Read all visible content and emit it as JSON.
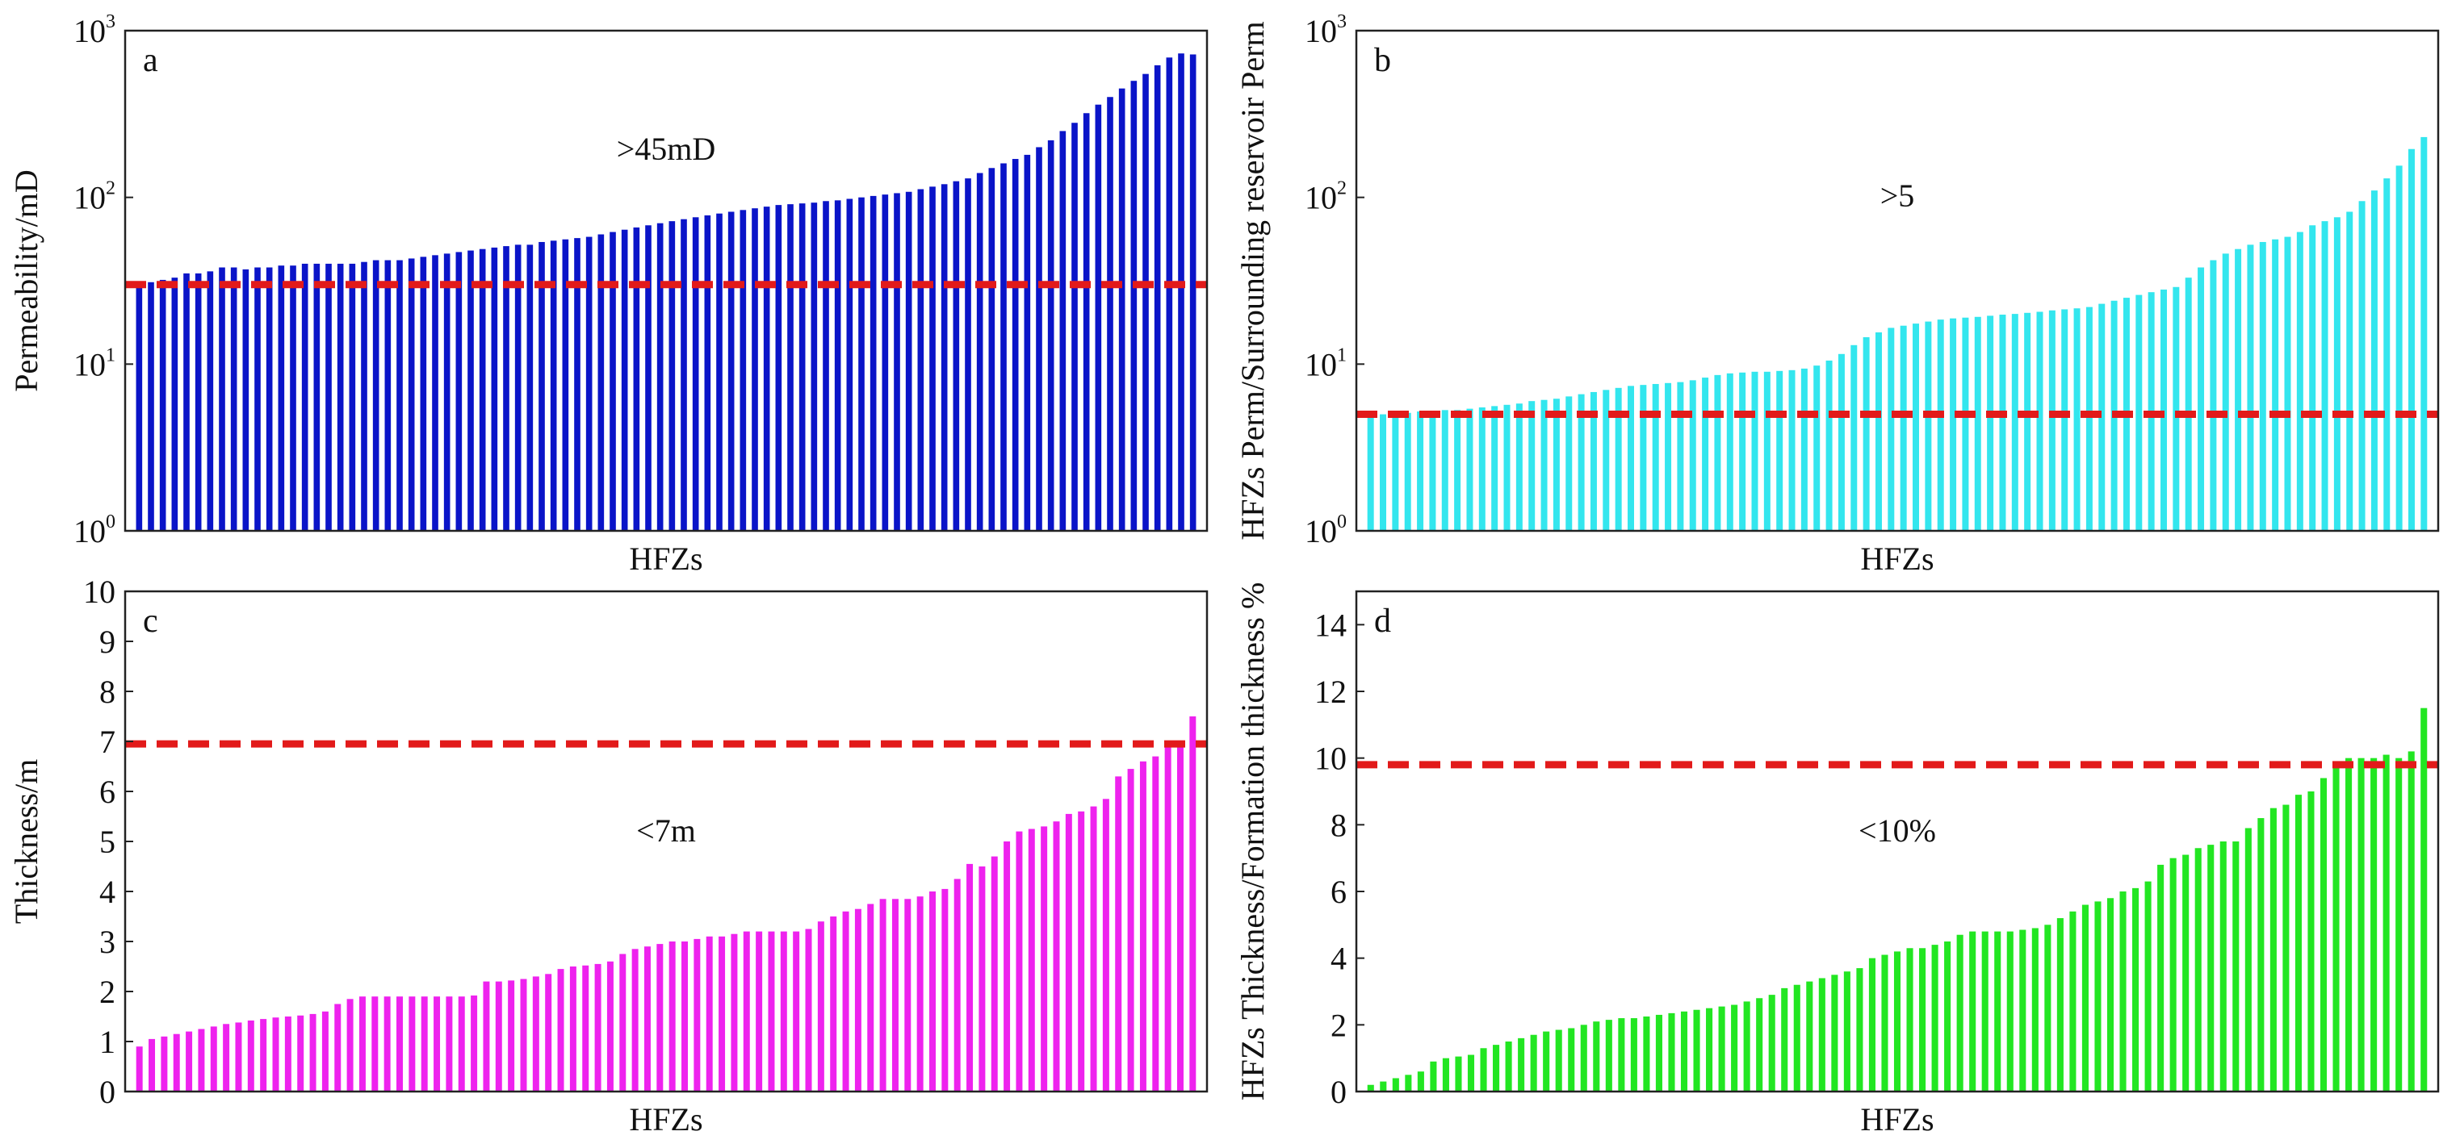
{
  "chart_data": [
    {
      "panel": "a",
      "type": "bar",
      "scale": "log",
      "ylim": [
        1,
        1000
      ],
      "yticks": [
        {
          "base": "10",
          "exp": "0",
          "v": 1
        },
        {
          "base": "10",
          "exp": "1",
          "v": 10
        },
        {
          "base": "10",
          "exp": "2",
          "v": 100
        },
        {
          "base": "10",
          "exp": "3",
          "v": 1000
        }
      ],
      "xlabel": "HFZs",
      "ylabel": "Permeability/mD",
      "annotation": ">45mD",
      "threshold": 30,
      "color": "#0a14c8",
      "values": [
        30,
        31,
        32,
        33,
        35,
        35,
        36,
        38,
        38,
        37,
        38,
        38,
        39,
        39,
        40,
        40,
        40,
        40,
        40,
        41,
        42,
        42,
        42,
        43,
        44,
        45,
        46,
        47,
        48,
        49,
        50,
        51,
        52,
        52,
        54,
        55,
        56,
        57,
        58,
        60,
        62,
        64,
        66,
        68,
        70,
        72,
        74,
        76,
        78,
        80,
        82,
        84,
        86,
        88,
        90,
        91,
        92,
        93,
        95,
        96,
        98,
        100,
        102,
        104,
        106,
        108,
        112,
        116,
        120,
        125,
        130,
        140,
        150,
        160,
        170,
        180,
        200,
        220,
        250,
        280,
        320,
        360,
        400,
        450,
        500,
        550,
        620,
        690,
        730,
        720
      ]
    },
    {
      "panel": "b",
      "type": "bar",
      "scale": "log",
      "ylim": [
        1,
        1000
      ],
      "yticks": [
        {
          "base": "10",
          "exp": "0",
          "v": 1
        },
        {
          "base": "10",
          "exp": "1",
          "v": 10
        },
        {
          "base": "10",
          "exp": "2",
          "v": 100
        },
        {
          "base": "10",
          "exp": "3",
          "v": 1000
        }
      ],
      "xlabel": "HFZs",
      "ylabel": "HFZs Perm/Surrounding reservoir Perm",
      "annotation": ">5",
      "threshold": 5,
      "color": "#33e6ee",
      "values": [
        5,
        5,
        5.1,
        5.1,
        5.2,
        5.2,
        5.3,
        5.3,
        5.4,
        5.5,
        5.6,
        5.7,
        5.8,
        6,
        6.1,
        6.2,
        6.4,
        6.6,
        6.8,
        7,
        7.2,
        7.4,
        7.5,
        7.6,
        7.7,
        7.8,
        8,
        8.3,
        8.6,
        8.8,
        8.9,
        9,
        9,
        9.1,
        9.2,
        9.4,
        9.8,
        10.5,
        11.5,
        13,
        14.5,
        15.5,
        16.5,
        17,
        17.5,
        18,
        18.5,
        18.8,
        19,
        19.2,
        19.5,
        19.8,
        20,
        20.3,
        20.6,
        21,
        21.3,
        21.6,
        22,
        23,
        24,
        25,
        26,
        27,
        28,
        29,
        33,
        38,
        42,
        46,
        49,
        52,
        54,
        56,
        58,
        62,
        68,
        72,
        76,
        82,
        95,
        110,
        130,
        155,
        195,
        230
      ]
    },
    {
      "panel": "c",
      "type": "bar",
      "scale": "linear",
      "ylim": [
        0,
        10
      ],
      "yticks": [
        {
          "label": "0",
          "v": 0
        },
        {
          "label": "1",
          "v": 1
        },
        {
          "label": "2",
          "v": 2
        },
        {
          "label": "3",
          "v": 3
        },
        {
          "label": "4",
          "v": 4
        },
        {
          "label": "5",
          "v": 5
        },
        {
          "label": "6",
          "v": 6
        },
        {
          "label": "7",
          "v": 7
        },
        {
          "label": "8",
          "v": 8
        },
        {
          "label": "9",
          "v": 9
        },
        {
          "label": "10",
          "v": 10
        }
      ],
      "xlabel": "HFZs",
      "ylabel": "Thickness/m",
      "annotation": "<7m",
      "threshold": 6.95,
      "color": "#ee22ee",
      "values": [
        0.9,
        1.05,
        1.1,
        1.15,
        1.2,
        1.25,
        1.3,
        1.35,
        1.38,
        1.42,
        1.45,
        1.48,
        1.5,
        1.52,
        1.55,
        1.6,
        1.75,
        1.85,
        1.9,
        1.9,
        1.9,
        1.9,
        1.9,
        1.9,
        1.9,
        1.9,
        1.9,
        1.92,
        2.2,
        2.2,
        2.22,
        2.25,
        2.3,
        2.35,
        2.45,
        2.5,
        2.52,
        2.55,
        2.6,
        2.75,
        2.85,
        2.9,
        2.95,
        3.0,
        3.0,
        3.05,
        3.1,
        3.1,
        3.15,
        3.2,
        3.2,
        3.2,
        3.2,
        3.2,
        3.25,
        3.4,
        3.5,
        3.6,
        3.65,
        3.75,
        3.85,
        3.85,
        3.85,
        3.9,
        4.0,
        4.05,
        4.25,
        4.55,
        4.5,
        4.7,
        5.0,
        5.2,
        5.25,
        5.3,
        5.4,
        5.55,
        5.6,
        5.7,
        5.85,
        6.3,
        6.45,
        6.6,
        6.7,
        6.9,
        7.0,
        7.5
      ]
    },
    {
      "panel": "d",
      "type": "bar",
      "scale": "linear",
      "ylim": [
        0,
        15
      ],
      "yticks": [
        {
          "label": "0",
          "v": 0
        },
        {
          "label": "2",
          "v": 2
        },
        {
          "label": "4",
          "v": 4
        },
        {
          "label": "6",
          "v": 6
        },
        {
          "label": "8",
          "v": 8
        },
        {
          "label": "10",
          "v": 10
        },
        {
          "label": "12",
          "v": 12
        },
        {
          "label": "14",
          "v": 14
        }
      ],
      "xlabel": "HFZs",
      "ylabel": "HFZs Thickness/Formation thickness %",
      "annotation": "<10%",
      "threshold": 9.8,
      "color": "#22e622",
      "values": [
        0.2,
        0.3,
        0.4,
        0.5,
        0.6,
        0.9,
        1.0,
        1.05,
        1.1,
        1.3,
        1.4,
        1.5,
        1.6,
        1.7,
        1.8,
        1.85,
        1.9,
        2.0,
        2.1,
        2.15,
        2.2,
        2.2,
        2.25,
        2.3,
        2.35,
        2.4,
        2.45,
        2.5,
        2.55,
        2.6,
        2.7,
        2.8,
        2.9,
        3.1,
        3.2,
        3.3,
        3.4,
        3.5,
        3.6,
        3.7,
        4.0,
        4.1,
        4.2,
        4.3,
        4.3,
        4.4,
        4.5,
        4.7,
        4.8,
        4.8,
        4.8,
        4.8,
        4.85,
        4.9,
        5.0,
        5.2,
        5.4,
        5.6,
        5.7,
        5.8,
        6.0,
        6.1,
        6.3,
        6.8,
        7.0,
        7.1,
        7.3,
        7.4,
        7.5,
        7.5,
        7.9,
        8.2,
        8.5,
        8.6,
        8.9,
        9.0,
        9.4,
        9.8,
        10.0,
        10.0,
        10.0,
        10.1,
        10.0,
        10.2,
        11.5
      ]
    }
  ],
  "panel_letters": {
    "a": "a",
    "b": "b",
    "c": "c",
    "d": "d"
  },
  "colors": {
    "threshold_line": "#e21a1a",
    "frame": "#222222"
  }
}
